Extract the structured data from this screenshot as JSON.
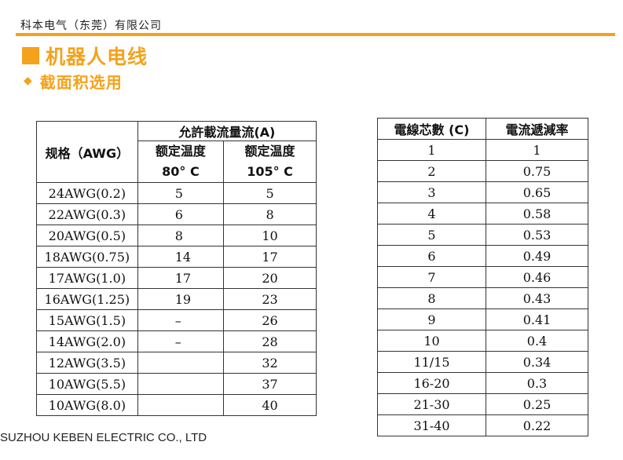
{
  "header": {
    "company": "科本电气（东莞）有限公司",
    "title": "机器人电线",
    "subtitle": "截面积选用"
  },
  "accent_color": "#f4a21c",
  "icons": {
    "title_marker": "square-icon",
    "subtitle_marker": "diamond-icon"
  },
  "table1": {
    "col1_header": "规格（AWG）",
    "group_header": "允許載流量流(A)",
    "col2_header": "额定温度",
    "col2_sub": "80° C",
    "col3_header": "额定温度",
    "col3_sub": "105° C",
    "rows": [
      [
        "24AWG(0.2)",
        "5",
        "5"
      ],
      [
        "22AWG(0.3)",
        "6",
        "8"
      ],
      [
        "20AWG(0.5)",
        "8",
        "10"
      ],
      [
        "18AWG(0.75)",
        "14",
        "17"
      ],
      [
        "17AWG(1.0)",
        "17",
        "20"
      ],
      [
        "16AWG(1.25)",
        "19",
        "23"
      ],
      [
        "15AWG(1.5)",
        "–",
        "26"
      ],
      [
        "14AWG(2.0)",
        "–",
        "28"
      ],
      [
        "12AWG(3.5)",
        "",
        "32"
      ],
      [
        "10AWG(5.5)",
        "",
        "37"
      ],
      [
        "10AWG(8.0)",
        "",
        "40"
      ]
    ]
  },
  "table2": {
    "col1_header": "電線芯數 (C)",
    "col2_header": "電流遞減率",
    "rows": [
      [
        "1",
        "1"
      ],
      [
        "2",
        "0.75"
      ],
      [
        "3",
        "0.65"
      ],
      [
        "4",
        "0.58"
      ],
      [
        "5",
        "0.53"
      ],
      [
        "6",
        "0.49"
      ],
      [
        "7",
        "0.46"
      ],
      [
        "8",
        "0.43"
      ],
      [
        "9",
        "0.41"
      ],
      [
        "10",
        "0.4"
      ],
      [
        "11/15",
        "0.34"
      ],
      [
        "16-20",
        "0.3"
      ],
      [
        "21-30",
        "0.25"
      ],
      [
        "31-40",
        "0.22"
      ]
    ]
  },
  "footer": {
    "company_en": "SUZHOU KEBEN ELECTRIC  CO., LTD"
  }
}
